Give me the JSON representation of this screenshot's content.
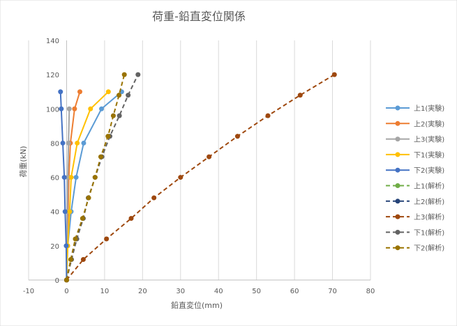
{
  "chart_data": {
    "type": "line",
    "title": "荷重-鉛直変位関係",
    "xlabel": "鉛直変位(mm)",
    "ylabel": "荷重(kN)",
    "xlim": [
      -10,
      80
    ],
    "ylim": [
      0,
      140
    ],
    "xticks": [
      -10,
      0,
      10,
      20,
      30,
      40,
      50,
      60,
      70,
      80
    ],
    "yticks": [
      0,
      20,
      40,
      60,
      80,
      100,
      120,
      140
    ],
    "grid": "vertical",
    "legend_position": "right",
    "series": [
      {
        "name": "上1(実験)",
        "color": "#5B9BD5",
        "dash": false,
        "points": [
          [
            0,
            0
          ],
          [
            0.3,
            20
          ],
          [
            1.2,
            40
          ],
          [
            2.5,
            60
          ],
          [
            4.5,
            80
          ],
          [
            9.2,
            100
          ],
          [
            14.5,
            110
          ]
        ]
      },
      {
        "name": "上2(実験)",
        "color": "#ED7D31",
        "dash": false,
        "points": [
          [
            0,
            0
          ],
          [
            0.2,
            20
          ],
          [
            0.4,
            40
          ],
          [
            0.6,
            60
          ],
          [
            1.0,
            80
          ],
          [
            2.1,
            100
          ],
          [
            3.5,
            110
          ]
        ]
      },
      {
        "name": "上3(実験)",
        "color": "#A5A5A5",
        "dash": false,
        "points": [
          [
            0,
            0
          ],
          [
            0.1,
            20
          ],
          [
            0.2,
            40
          ],
          [
            0.3,
            60
          ],
          [
            0.5,
            80
          ],
          [
            0.7,
            100
          ]
        ]
      },
      {
        "name": "下1(実験)",
        "color": "#FFC000",
        "dash": false,
        "points": [
          [
            0,
            0
          ],
          [
            0.3,
            20
          ],
          [
            0.8,
            40
          ],
          [
            1.2,
            60
          ],
          [
            2.8,
            80
          ],
          [
            6.3,
            100
          ],
          [
            11,
            110
          ]
        ]
      },
      {
        "name": "下2(実験)",
        "color": "#4472C4",
        "dash": false,
        "points": [
          [
            0,
            0
          ],
          [
            -0.1,
            20
          ],
          [
            -0.4,
            40
          ],
          [
            -0.6,
            60
          ],
          [
            -1.0,
            80
          ],
          [
            -1.4,
            100
          ],
          [
            -1.6,
            110
          ]
        ]
      },
      {
        "name": "上1(解析)",
        "color": "#70AD47",
        "dash": true,
        "points": []
      },
      {
        "name": "上2(解析)",
        "color": "#264478",
        "dash": true,
        "points": []
      },
      {
        "name": "上3(解析)",
        "color": "#9E480E",
        "dash": true,
        "points": [
          [
            0,
            0
          ],
          [
            4.4,
            12
          ],
          [
            10.5,
            24
          ],
          [
            17,
            36
          ],
          [
            23,
            48
          ],
          [
            30,
            60
          ],
          [
            37.5,
            72
          ],
          [
            45,
            84
          ],
          [
            53,
            96
          ],
          [
            61.5,
            108
          ],
          [
            70.5,
            120
          ]
        ]
      },
      {
        "name": "下1(解析)",
        "color": "#636363",
        "dash": true,
        "points": [
          [
            0,
            0
          ],
          [
            1.3,
            12
          ],
          [
            2.7,
            24
          ],
          [
            4.4,
            36
          ],
          [
            5.7,
            48
          ],
          [
            7.5,
            60
          ],
          [
            9.3,
            72
          ],
          [
            11.4,
            84
          ],
          [
            13.9,
            96
          ],
          [
            16.2,
            108
          ],
          [
            18.8,
            120
          ]
        ]
      },
      {
        "name": "下2(解析)",
        "color": "#997300",
        "dash": true,
        "points": [
          [
            0,
            0
          ],
          [
            1.1,
            12
          ],
          [
            2.3,
            24
          ],
          [
            4.2,
            36
          ],
          [
            5.8,
            48
          ],
          [
            7.5,
            60
          ],
          [
            9,
            72
          ],
          [
            10.9,
            84
          ],
          [
            12.3,
            96
          ],
          [
            13.8,
            108
          ],
          [
            15.2,
            120
          ]
        ]
      }
    ]
  }
}
